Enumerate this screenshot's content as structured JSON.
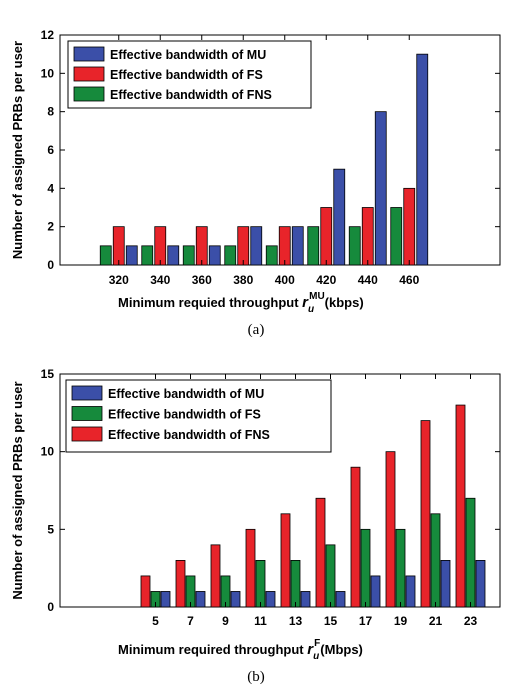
{
  "chart_data": [
    {
      "type": "bar",
      "caption": "(a)",
      "xlabel": "Minimum requied throughput",
      "xlabel_symbol": "r",
      "xlabel_sub": "u",
      "xlabel_sup": "MU",
      "xlabel_unit": "(kbps)",
      "ylabel": "Number of assigned PRBs per user",
      "ylim": [
        0,
        12
      ],
      "yticks": [
        "0",
        "2",
        "4",
        "6",
        "8",
        "10",
        "12"
      ],
      "categories": [
        "320",
        "340",
        "360",
        "380",
        "400",
        "420",
        "440",
        "460"
      ],
      "legend_position": "top-left",
      "series": [
        {
          "name": "Effective bandwidth of MU",
          "color": "#3b4fa8",
          "values": [
            1,
            1,
            1,
            2,
            2,
            5,
            8,
            11
          ]
        },
        {
          "name": "Effective bandwidth of FS",
          "color": "#e8242a",
          "values": [
            2,
            2,
            2,
            2,
            2,
            3,
            3,
            4
          ]
        },
        {
          "name": "Effective bandwidth of FNS",
          "color": "#168a3c",
          "values": [
            1,
            1,
            1,
            1,
            1,
            2,
            2,
            3
          ]
        }
      ]
    },
    {
      "type": "bar",
      "caption": "(b)",
      "xlabel": "Minimum required throughput",
      "xlabel_symbol": "r",
      "xlabel_sub": "u",
      "xlabel_sup": "F",
      "xlabel_unit": "(Mbps)",
      "ylabel": "Number of assigned PRBs per user",
      "ylim": [
        0,
        15
      ],
      "yticks": [
        "0",
        "5",
        "10",
        "15"
      ],
      "categories": [
        "5",
        "7",
        "9",
        "11",
        "13",
        "15",
        "17",
        "19",
        "21",
        "23"
      ],
      "legend_position": "top-left",
      "series": [
        {
          "name": "Effective bandwidth of MU",
          "color": "#3b4fa8",
          "values": [
            1,
            1,
            1,
            1,
            1,
            1,
            2,
            2,
            3,
            3
          ]
        },
        {
          "name": "Effective bandwidth of FS",
          "color": "#168a3c",
          "values": [
            1,
            2,
            2,
            3,
            3,
            4,
            5,
            5,
            6,
            7
          ]
        },
        {
          "name": "Effective bandwidth of FNS",
          "color": "#e8242a",
          "values": [
            2,
            3,
            4,
            5,
            6,
            7,
            9,
            10,
            12,
            13
          ]
        }
      ]
    }
  ]
}
